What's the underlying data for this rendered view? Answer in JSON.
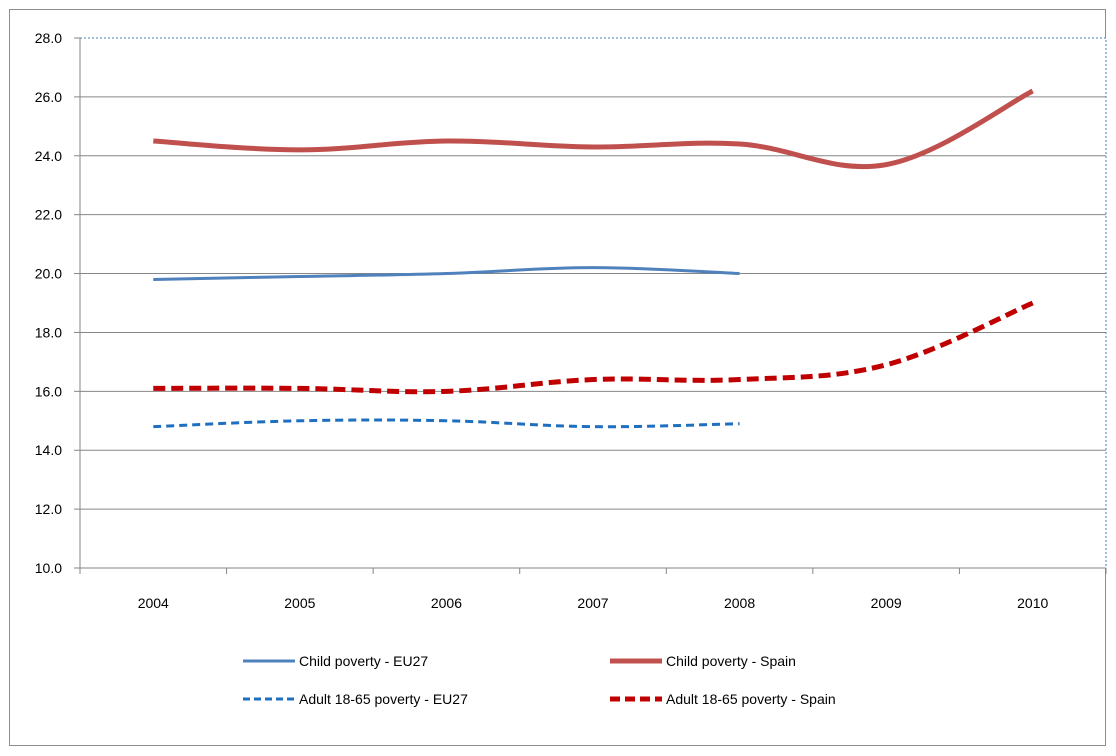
{
  "chart_data": {
    "type": "line",
    "title": "",
    "xlabel": "",
    "ylabel": "",
    "categories": [
      "2004",
      "2005",
      "2006",
      "2007",
      "2008",
      "2009",
      "2010"
    ],
    "ylim": [
      10.0,
      28.0
    ],
    "yticks": [
      "10.0",
      "12.0",
      "14.0",
      "16.0",
      "18.0",
      "20.0",
      "22.0",
      "24.0",
      "26.0",
      "28.0"
    ],
    "grid": true,
    "legend_position": "bottom",
    "series": [
      {
        "name": "Child poverty - EU27",
        "values": [
          19.8,
          19.9,
          20.0,
          20.2,
          20.0,
          null,
          null
        ],
        "color": "#4f81bd",
        "style": "solid",
        "width": 3
      },
      {
        "name": "Child poverty - Spain",
        "values": [
          24.5,
          24.2,
          24.5,
          24.3,
          24.4,
          23.7,
          26.2
        ],
        "color": "#c0504d",
        "style": "solid",
        "width": 5
      },
      {
        "name": "Adult 18-65 poverty - EU27",
        "values": [
          14.8,
          15.0,
          15.0,
          14.8,
          14.9,
          null,
          null
        ],
        "color": "#1f6fc0",
        "style": "dashed",
        "width": 3
      },
      {
        "name": "Adult 18-65 poverty - Spain",
        "values": [
          16.1,
          16.1,
          16.0,
          16.4,
          16.4,
          16.9,
          19.0
        ],
        "color": "#c00000",
        "style": "dashed",
        "width": 5
      }
    ]
  }
}
